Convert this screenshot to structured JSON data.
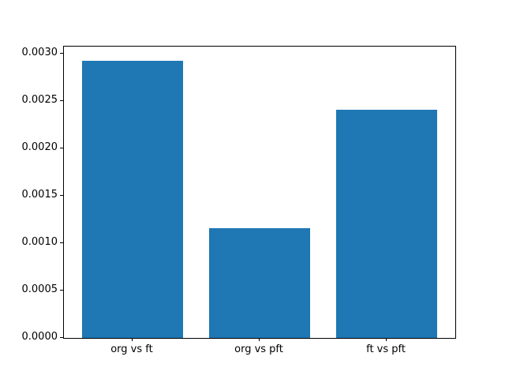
{
  "chart_data": {
    "type": "bar",
    "title": "",
    "xlabel": "",
    "ylabel": "",
    "categories": [
      "org vs ft",
      "org vs pft",
      "ft vs pft"
    ],
    "values": [
      0.00293,
      0.00116,
      0.00241
    ],
    "bar_color": "#1f77b4",
    "ylim": [
      0,
      0.003077
    ],
    "yticks": [
      0.0,
      0.0005,
      0.001,
      0.0015,
      0.002,
      0.0025,
      0.003
    ],
    "ytick_labels": [
      "0.0000",
      "0.0005",
      "0.0010",
      "0.0015",
      "0.0020",
      "0.0025",
      "0.0030"
    ],
    "xlim": [
      -0.54,
      2.54
    ],
    "bar_width_units": 0.8,
    "grid": false,
    "legend": null,
    "spine_color": "#000000",
    "background_color": "#ffffff"
  }
}
